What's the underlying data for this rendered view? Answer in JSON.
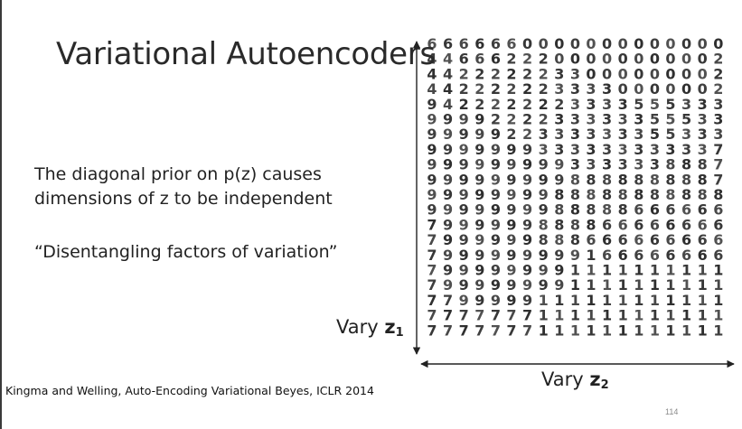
{
  "slide": {
    "title": "Variational Autoencoders",
    "body_line_1a": "The diagonal prior on p(z) causes",
    "body_line_1b": "dimensions of z to be independent",
    "body_line_2": "“Disentangling factors of variation”",
    "citation": "Kingma and Welling, Auto-Encoding Variational Beyes, ICLR 2014",
    "page_number": "114"
  },
  "figure": {
    "z1_label_prefix": "Vary ",
    "z1_label_var": "z",
    "z1_label_sub": "1",
    "z2_label_prefix": "Vary ",
    "z2_label_var": "z",
    "z2_label_sub": "2",
    "grid_rows": [
      "6666660000000000000",
      "4466622200000000002",
      "4422222233000000002",
      "4422222233330000002",
      "9422222223333555333",
      "9999222233333355533",
      "9999922333333355333",
      "9999999333333333337",
      "9999999993333338887",
      "9999999998888888887",
      "9999999988888888888",
      "9999999988888666666",
      "7999999888866666666",
      "7999999888666666666",
      "7999999999166666666",
      "7999999991111111111",
      "7999999991111111111",
      "7799999111111111111",
      "7777777111111111111",
      "7777777111111111111"
    ]
  }
}
